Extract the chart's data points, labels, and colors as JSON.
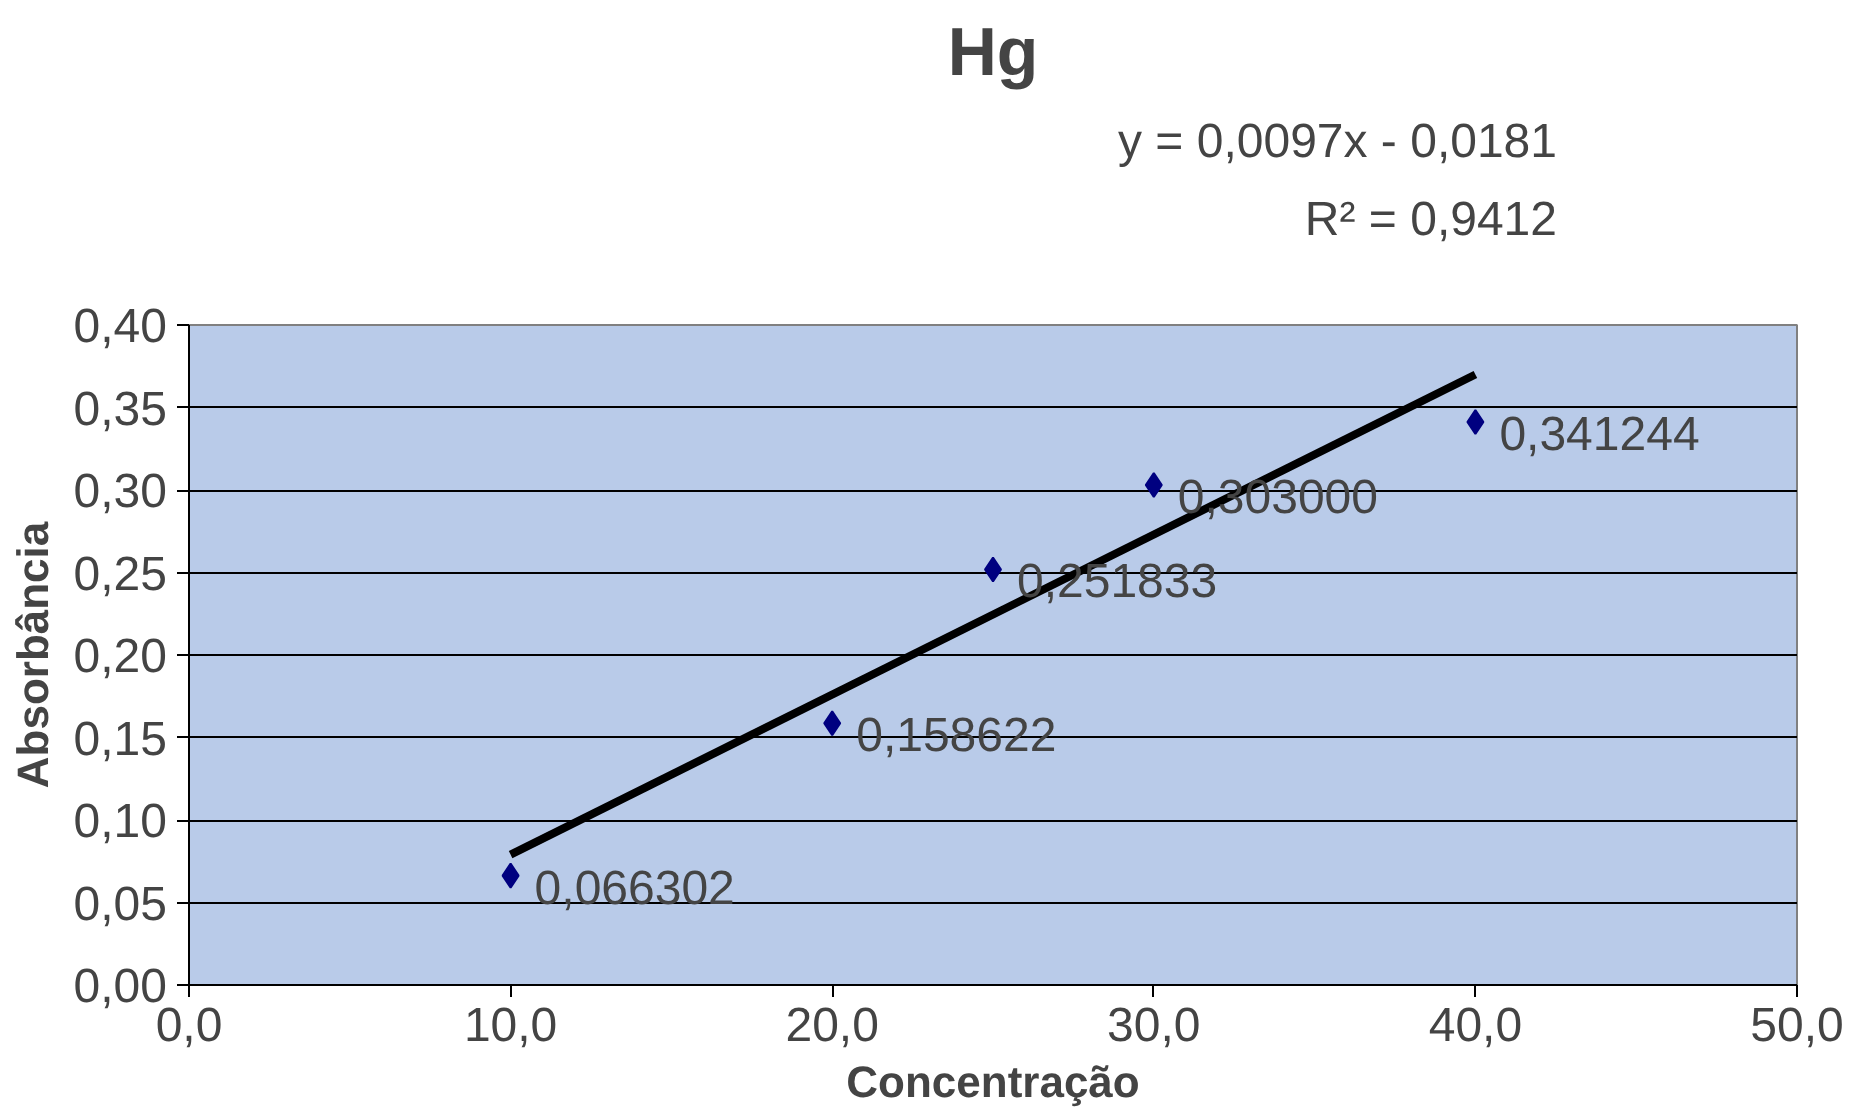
{
  "chart_data": {
    "type": "scatter",
    "title": "Hg",
    "xlabel": "Concentração",
    "ylabel": "Absorbância",
    "annotations": [
      "y = 0,0097x - 0,0181",
      "R² = 0,9412"
    ],
    "x": [
      10,
      20,
      25,
      30,
      40
    ],
    "series": [
      {
        "color": "#000080",
        "values": [
          0.066302,
          0.158622,
          0.251833,
          0.303,
          0.341244
        ],
        "value_labels": [
          "0,066302",
          "0,158622",
          "0,251833",
          "0,303000",
          "0,341244"
        ],
        "marker": "diamond"
      },
      {
        "type": "line",
        "color": "#000000",
        "x": [
          10,
          40
        ],
        "values": [
          0.079,
          0.37
        ],
        "line_style": "solid"
      }
    ],
    "xlim": [
      0,
      50
    ],
    "ylim": [
      0,
      0.4
    ],
    "xticks": [
      {
        "value": 0,
        "label": "0,0"
      },
      {
        "value": 10,
        "label": "10,0"
      },
      {
        "value": 20,
        "label": "20,0"
      },
      {
        "value": 30,
        "label": "30,0"
      },
      {
        "value": 40,
        "label": "40,0"
      },
      {
        "value": 50,
        "label": "50,0"
      }
    ],
    "yticks": [
      {
        "value": 0,
        "label": "0,00"
      },
      {
        "value": 0.05,
        "label": "0,05"
      },
      {
        "value": 0.1,
        "label": "0,10"
      },
      {
        "value": 0.15,
        "label": "0,15"
      },
      {
        "value": 0.2,
        "label": "0,20"
      },
      {
        "value": 0.25,
        "label": "0,25"
      },
      {
        "value": 0.3,
        "label": "0,30"
      },
      {
        "value": 0.35,
        "label": "0,35"
      },
      {
        "value": 0.4,
        "label": "0,40"
      }
    ],
    "grid": "y"
  }
}
